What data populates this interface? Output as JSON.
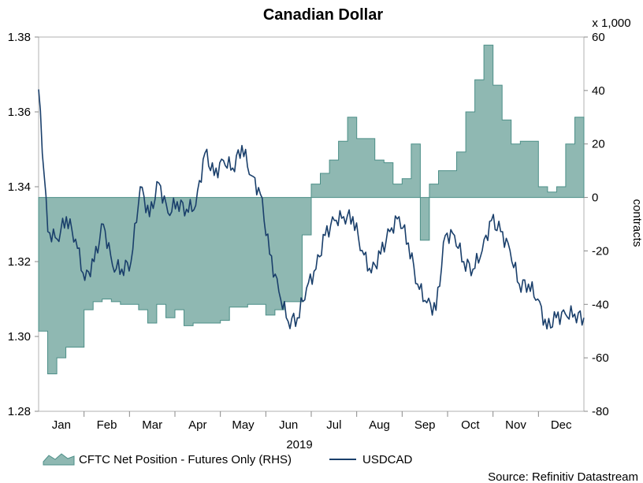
{
  "chart_data": {
    "type": "area+line",
    "title": "Canadian Dollar",
    "xlabel": "2019",
    "source": "Source: Refinitiv Datastream",
    "left_axis": {
      "ticks": [
        "1.28",
        "1.30",
        "1.32",
        "1.34",
        "1.36",
        "1.38"
      ],
      "range": [
        1.28,
        1.38
      ]
    },
    "right_axis": {
      "ticks": [
        "-80",
        "-60",
        "-40",
        "-20",
        "0",
        "20",
        "40",
        "60"
      ],
      "range": [
        -80,
        60
      ],
      "unit": "x 1,000",
      "label": "contracts"
    },
    "months": [
      "Jan",
      "Feb",
      "Mar",
      "Apr",
      "May",
      "Jun",
      "Jul",
      "Aug",
      "Sep",
      "Oct",
      "Nov",
      "Dec"
    ],
    "legend": {
      "area": "CFTC Net Position - Futures Only (RHS)",
      "line": "USDCAD"
    },
    "colors": {
      "area_fill": "#8fb8b2",
      "area_stroke": "#4d8f88",
      "line": "#1a3f6b"
    },
    "cftc_weeks": [
      -50,
      -66,
      -60,
      -56,
      -56,
      -42,
      -39,
      -38,
      -39,
      -40,
      -40,
      -42,
      -47,
      -40,
      -45,
      -42,
      -48,
      -47,
      -47,
      -47,
      -46,
      -41,
      -41,
      -40,
      -40,
      -44,
      -42,
      -39,
      -39,
      -14,
      5,
      9,
      14,
      21,
      30,
      22,
      22,
      14,
      13,
      5,
      7,
      20,
      -16,
      5,
      10,
      10,
      17,
      32,
      44,
      57,
      42,
      29,
      20,
      21,
      21,
      4,
      2,
      4,
      20,
      30
    ],
    "usdcad_weekly": [
      1.366,
      1.328,
      1.326,
      1.332,
      1.326,
      1.315,
      1.32,
      1.33,
      1.319,
      1.318,
      1.32,
      1.34,
      1.332,
      1.341,
      1.333,
      1.336,
      1.334,
      1.335,
      1.349,
      1.343,
      1.347,
      1.345,
      1.351,
      1.343,
      1.338,
      1.322,
      1.312,
      1.304,
      1.305,
      1.313,
      1.318,
      1.327,
      1.331,
      1.332,
      1.332,
      1.323,
      1.317,
      1.322,
      1.328,
      1.332,
      1.325,
      1.314,
      1.309,
      1.307,
      1.327,
      1.327,
      1.32,
      1.318,
      1.323,
      1.331,
      1.328,
      1.323,
      1.314,
      1.314,
      1.31,
      1.302,
      1.305,
      1.306,
      1.306,
      1.305
    ]
  }
}
